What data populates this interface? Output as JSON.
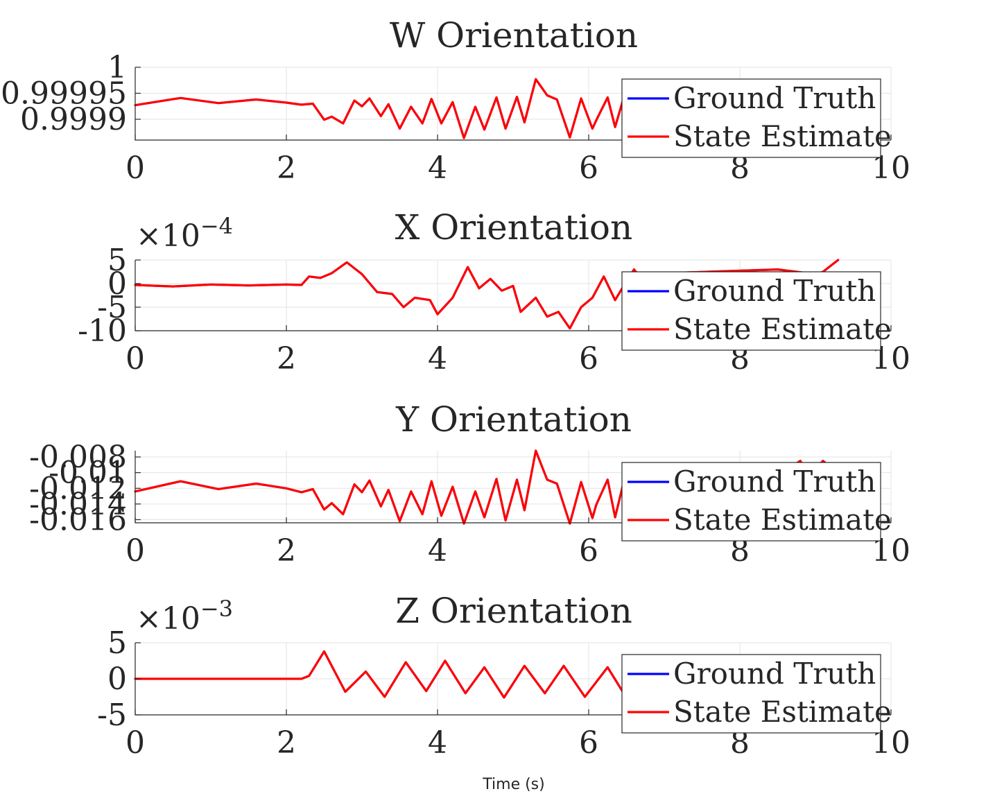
{
  "figure": {
    "xlabel": "Time (s)"
  },
  "colors": {
    "ground_truth": "#0000ff",
    "state_estimate": "#ff0000",
    "text": "#262626"
  },
  "chart_data": [
    {
      "type": "line",
      "title": "W Orientation",
      "xlim": [
        0,
        10
      ],
      "ylim": [
        0.99986,
        1.0
      ],
      "yticks": [
        0.9999,
        0.99995,
        1
      ],
      "ytick_labels": [
        "0.9999",
        "0.99995",
        "1"
      ],
      "xticks": [
        0,
        2,
        4,
        6,
        8,
        10
      ],
      "xtick_labels": [
        "0",
        "2",
        "4",
        "6",
        "8",
        "10"
      ],
      "exponent_label": "",
      "grid": true,
      "legend": "top-right",
      "series": [
        {
          "name": "Ground Truth",
          "color": "#0000ff",
          "x": [
            0,
            0.6,
            1.1,
            1.6,
            2.0,
            2.2,
            2.35,
            2.5,
            2.6,
            2.75,
            2.9,
            3.0,
            3.1,
            3.25,
            3.35,
            3.5,
            3.65,
            3.8,
            3.92,
            4.05,
            4.2,
            4.35,
            4.5,
            4.62,
            4.78,
            4.9,
            5.05,
            5.15,
            5.3,
            5.45,
            5.58,
            5.75,
            5.9,
            6.05,
            6.1,
            6.25,
            6.35,
            6.45
          ],
          "y": [
            0.999927,
            0.999941,
            0.999931,
            0.999938,
            0.999932,
            0.999928,
            0.99993,
            0.999899,
            0.999905,
            0.999892,
            0.999936,
            0.999925,
            0.99994,
            0.999906,
            0.999929,
            0.999882,
            0.999924,
            0.999892,
            0.999939,
            0.999892,
            0.999933,
            0.999864,
            0.999924,
            0.99988,
            0.999942,
            0.999882,
            0.999943,
            0.999894,
            0.999977,
            0.999946,
            0.999938,
            0.999865,
            0.99994,
            0.999882,
            0.999898,
            0.999942,
            0.999885,
            0.999935
          ]
        },
        {
          "name": "State Estimate",
          "color": "#ff0000",
          "x": [
            0,
            0.6,
            1.1,
            1.6,
            2.0,
            2.2,
            2.35,
            2.5,
            2.6,
            2.75,
            2.9,
            3.0,
            3.1,
            3.25,
            3.35,
            3.5,
            3.65,
            3.8,
            3.92,
            4.05,
            4.2,
            4.35,
            4.5,
            4.62,
            4.78,
            4.9,
            5.05,
            5.15,
            5.3,
            5.45,
            5.58,
            5.75,
            5.9,
            6.05,
            6.1,
            6.25,
            6.35,
            6.45
          ],
          "y": [
            0.999927,
            0.999941,
            0.999931,
            0.999938,
            0.999932,
            0.999928,
            0.99993,
            0.999899,
            0.999905,
            0.999892,
            0.999936,
            0.999925,
            0.99994,
            0.999906,
            0.999929,
            0.999882,
            0.999924,
            0.999892,
            0.999939,
            0.999892,
            0.999933,
            0.999864,
            0.999924,
            0.99988,
            0.999942,
            0.999882,
            0.999943,
            0.999894,
            0.999977,
            0.999946,
            0.999938,
            0.999865,
            0.99994,
            0.999882,
            0.999898,
            0.999942,
            0.999885,
            0.999935
          ]
        }
      ]
    },
    {
      "type": "line",
      "title": "X Orientation",
      "xlim": [
        0,
        10
      ],
      "ylim": [
        -10,
        5
      ],
      "yticks": [
        -10,
        -5,
        0,
        5
      ],
      "ytick_labels": [
        "-10",
        "-5",
        "0",
        "5"
      ],
      "xticks": [
        0,
        2,
        4,
        6,
        8,
        10
      ],
      "xtick_labels": [
        "0",
        "2",
        "4",
        "6",
        "8",
        "10"
      ],
      "exponent_label": "×10",
      "exponent_power": "−4",
      "grid": true,
      "legend": "top-right",
      "series": [
        {
          "name": "Ground Truth",
          "color": "#0000ff",
          "x": [
            0,
            0.5,
            1.0,
            1.5,
            2.0,
            2.2,
            2.3,
            2.45,
            2.6,
            2.8,
            3.0,
            3.2,
            3.4,
            3.55,
            3.7,
            3.9,
            4.0,
            4.2,
            4.4,
            4.55,
            4.7,
            4.85,
            5.0,
            5.1,
            5.3,
            5.45,
            5.6,
            5.75,
            5.9,
            6.05,
            6.2,
            6.35,
            6.5,
            6.6,
            6.65,
            8.5,
            9.0,
            9.1,
            9.3
          ],
          "y": [
            -0.3,
            -0.6,
            -0.2,
            -0.4,
            -0.2,
            -0.3,
            1.5,
            1.2,
            2.2,
            4.5,
            2.0,
            -1.8,
            -2.2,
            -5.0,
            -3.0,
            -3.5,
            -6.5,
            -3.0,
            3.5,
            -1.0,
            1.0,
            -1.5,
            -0.5,
            -6.0,
            -3.0,
            -7.0,
            -6.0,
            -9.5,
            -5.0,
            -3.0,
            1.5,
            -3.5,
            0.5,
            3.0,
            2.0,
            3.0,
            2.0,
            2.5,
            5.0
          ]
        },
        {
          "name": "State Estimate",
          "color": "#ff0000",
          "x": [
            0,
            0.5,
            1.0,
            1.5,
            2.0,
            2.2,
            2.3,
            2.45,
            2.6,
            2.8,
            3.0,
            3.2,
            3.4,
            3.55,
            3.7,
            3.9,
            4.0,
            4.2,
            4.4,
            4.55,
            4.7,
            4.85,
            5.0,
            5.1,
            5.3,
            5.45,
            5.6,
            5.75,
            5.9,
            6.05,
            6.2,
            6.35,
            6.5,
            6.6,
            6.65,
            8.5,
            9.0,
            9.1,
            9.3
          ],
          "y": [
            -0.3,
            -0.6,
            -0.2,
            -0.4,
            -0.2,
            -0.3,
            1.5,
            1.2,
            2.2,
            4.5,
            2.0,
            -1.8,
            -2.2,
            -5.0,
            -3.0,
            -3.5,
            -6.5,
            -3.0,
            3.5,
            -1.0,
            1.0,
            -1.5,
            -0.5,
            -6.0,
            -3.0,
            -7.0,
            -6.0,
            -9.5,
            -5.0,
            -3.0,
            1.5,
            -3.5,
            0.5,
            3.0,
            2.0,
            3.0,
            2.0,
            2.5,
            5.0
          ]
        }
      ]
    },
    {
      "type": "line",
      "title": "Y Orientation",
      "xlim": [
        0,
        10
      ],
      "ylim": [
        -0.0164,
        -0.0072
      ],
      "yticks": [
        -0.016,
        -0.014,
        -0.012,
        -0.01,
        -0.008
      ],
      "ytick_labels": [
        "-0.016",
        "-0.014",
        "-0.012",
        "-0.01",
        "-0.008"
      ],
      "xticks": [
        0,
        2,
        4,
        6,
        8,
        10
      ],
      "xtick_labels": [
        "0",
        "2",
        "4",
        "6",
        "8",
        "10"
      ],
      "exponent_label": "",
      "grid": true,
      "legend": "top-right",
      "series": [
        {
          "name": "Ground Truth",
          "color": "#0000ff",
          "x": [
            0,
            0.6,
            1.1,
            1.6,
            2.0,
            2.2,
            2.35,
            2.5,
            2.6,
            2.75,
            2.9,
            3.0,
            3.1,
            3.25,
            3.35,
            3.5,
            3.65,
            3.8,
            3.92,
            4.05,
            4.2,
            4.35,
            4.5,
            4.62,
            4.78,
            4.9,
            5.05,
            5.15,
            5.3,
            5.45,
            5.58,
            5.75,
            5.9,
            6.05,
            6.1,
            6.25,
            6.35,
            6.45,
            8.75,
            8.8,
            8.85,
            9.0,
            9.1,
            9.2
          ],
          "y": [
            -0.0124,
            -0.0111,
            -0.0121,
            -0.0114,
            -0.012,
            -0.0125,
            -0.0121,
            -0.0147,
            -0.0139,
            -0.0153,
            -0.0115,
            -0.0125,
            -0.011,
            -0.0143,
            -0.0122,
            -0.0162,
            -0.0124,
            -0.0153,
            -0.0111,
            -0.0155,
            -0.0118,
            -0.0165,
            -0.0124,
            -0.0157,
            -0.0108,
            -0.0161,
            -0.0109,
            -0.0148,
            -0.0072,
            -0.0109,
            -0.0114,
            -0.0165,
            -0.0112,
            -0.0158,
            -0.0141,
            -0.0109,
            -0.0157,
            -0.0117,
            -0.0088,
            -0.0085,
            -0.0093,
            -0.0095,
            -0.0085,
            -0.0093
          ]
        },
        {
          "name": "State Estimate",
          "color": "#ff0000",
          "x": [
            0,
            0.6,
            1.1,
            1.6,
            2.0,
            2.2,
            2.35,
            2.5,
            2.6,
            2.75,
            2.9,
            3.0,
            3.1,
            3.25,
            3.35,
            3.5,
            3.65,
            3.8,
            3.92,
            4.05,
            4.2,
            4.35,
            4.5,
            4.62,
            4.78,
            4.9,
            5.05,
            5.15,
            5.3,
            5.45,
            5.58,
            5.75,
            5.9,
            6.05,
            6.1,
            6.25,
            6.35,
            6.45,
            8.75,
            8.8,
            8.85,
            9.0,
            9.1,
            9.2
          ],
          "y": [
            -0.0124,
            -0.0111,
            -0.0121,
            -0.0114,
            -0.012,
            -0.0125,
            -0.0121,
            -0.0147,
            -0.0139,
            -0.0153,
            -0.0115,
            -0.0125,
            -0.011,
            -0.0143,
            -0.0122,
            -0.0162,
            -0.0124,
            -0.0153,
            -0.0111,
            -0.0155,
            -0.0118,
            -0.0165,
            -0.0124,
            -0.0157,
            -0.0108,
            -0.0161,
            -0.0109,
            -0.0148,
            -0.0072,
            -0.0109,
            -0.0114,
            -0.0165,
            -0.0112,
            -0.0158,
            -0.0141,
            -0.0109,
            -0.0157,
            -0.0117,
            -0.0088,
            -0.0085,
            -0.0093,
            -0.0095,
            -0.0085,
            -0.0093
          ]
        }
      ]
    },
    {
      "type": "line",
      "title": "Z Orientation",
      "xlim": [
        0,
        10
      ],
      "ylim": [
        -5,
        5
      ],
      "yticks": [
        -5,
        0,
        5
      ],
      "ytick_labels": [
        "-5",
        "0",
        "5"
      ],
      "xticks": [
        0,
        2,
        4,
        6,
        8,
        10
      ],
      "xtick_labels": [
        "0",
        "2",
        "4",
        "6",
        "8",
        "10"
      ],
      "exponent_label": "×10",
      "exponent_power": "−3",
      "grid": true,
      "legend": "top-right",
      "series": [
        {
          "name": "Ground Truth",
          "color": "#0000ff",
          "x": [
            0,
            0.5,
            1.0,
            1.5,
            2.0,
            2.2,
            2.3,
            2.5,
            2.78,
            3.05,
            3.3,
            3.58,
            3.85,
            4.1,
            4.37,
            4.62,
            4.88,
            5.15,
            5.42,
            5.67,
            5.95,
            6.25,
            6.45
          ],
          "y": [
            0,
            0,
            0,
            0,
            0,
            0,
            0.4,
            3.8,
            -1.8,
            1.0,
            -2.5,
            2.3,
            -1.7,
            2.5,
            -2.0,
            1.6,
            -2.6,
            1.8,
            -2.0,
            1.8,
            -2.5,
            1.6,
            -1.8
          ]
        },
        {
          "name": "State Estimate",
          "color": "#ff0000",
          "x": [
            0,
            0.5,
            1.0,
            1.5,
            2.0,
            2.2,
            2.3,
            2.5,
            2.78,
            3.05,
            3.3,
            3.58,
            3.85,
            4.1,
            4.37,
            4.62,
            4.88,
            5.15,
            5.42,
            5.67,
            5.95,
            6.25,
            6.45
          ],
          "y": [
            0,
            0,
            0,
            0,
            0,
            0,
            0.4,
            3.8,
            -1.8,
            1.0,
            -2.5,
            2.3,
            -1.7,
            2.5,
            -2.0,
            1.6,
            -2.6,
            1.8,
            -2.0,
            1.8,
            -2.5,
            1.6,
            -1.8
          ]
        }
      ]
    }
  ]
}
